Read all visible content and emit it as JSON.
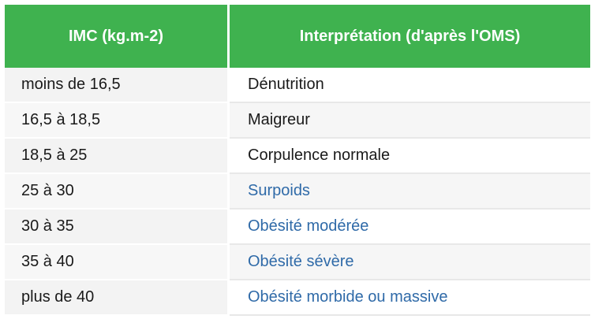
{
  "table": {
    "headers": [
      "IMC (kg.m-2)",
      "Interprétation (d'après l'OMS)"
    ],
    "rows": [
      {
        "imc": "moins de 16,5",
        "interpretation": "Dénutrition",
        "linked": false
      },
      {
        "imc": "16,5 à 18,5",
        "interpretation": "Maigreur",
        "linked": false
      },
      {
        "imc": "18,5 à 25",
        "interpretation": "Corpulence normale",
        "linked": false
      },
      {
        "imc": "25 à 30",
        "interpretation": "Surpoids",
        "linked": true
      },
      {
        "imc": "30 à 35",
        "interpretation": "Obésité modérée",
        "linked": true
      },
      {
        "imc": "35 à 40",
        "interpretation": "Obésité sévère",
        "linked": true
      },
      {
        "imc": "plus de 40",
        "interpretation": "Obésité morbide ou massive",
        "linked": true
      }
    ]
  },
  "colors": {
    "header_bg": "#3fb24f",
    "link": "#2f6aa8"
  }
}
